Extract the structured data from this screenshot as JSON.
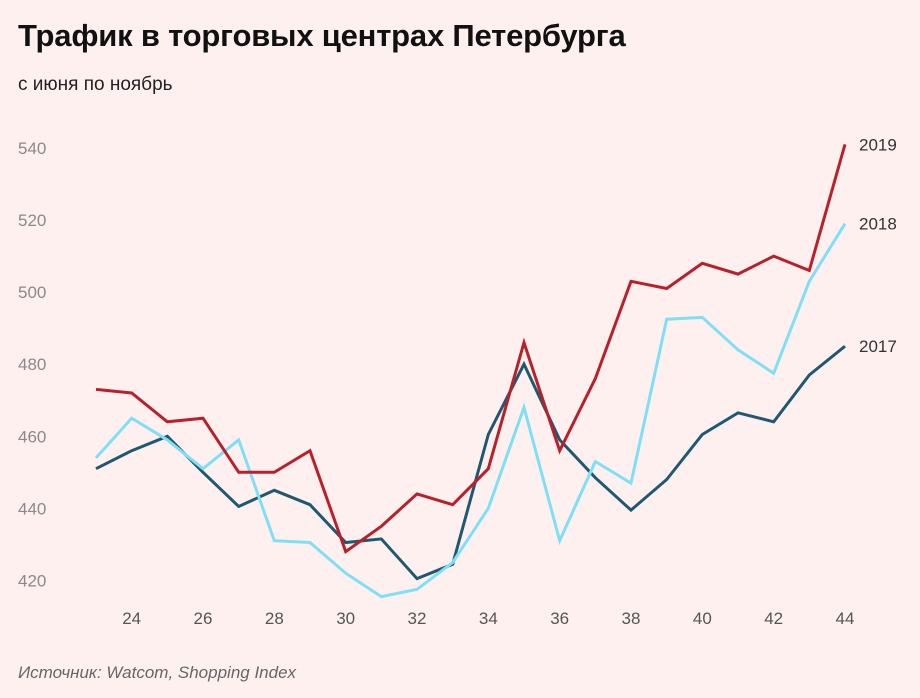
{
  "header": {
    "title": "Трафик в торговых центрах Петербурга",
    "subtitle": "с июня по ноябрь"
  },
  "footer": {
    "source_label": "Источник:",
    "source_text": " Watcom, Shopping Index"
  },
  "chart_data": {
    "type": "line",
    "title": "Трафик в торговых центрах Петербурга",
    "subtitle": "с июня по ноябрь",
    "xlabel": "",
    "ylabel": "",
    "x": [
      23,
      24,
      25,
      26,
      27,
      28,
      29,
      30,
      31,
      32,
      33,
      34,
      35,
      36,
      37,
      38,
      39,
      40,
      41,
      42,
      43,
      44
    ],
    "xticks": [
      24,
      26,
      28,
      30,
      32,
      34,
      36,
      38,
      40,
      42,
      44
    ],
    "yticks": [
      420,
      440,
      460,
      480,
      500,
      520,
      540
    ],
    "xlim": [
      23,
      44
    ],
    "ylim": [
      414,
      545
    ],
    "grid": false,
    "legend": "inline labels at line ends",
    "series": [
      {
        "name": "2017",
        "color": "#1f5872",
        "values": [
          451,
          456,
          460,
          450,
          440.5,
          445,
          441,
          430.5,
          431.5,
          420.5,
          424.5,
          460.5,
          480,
          459,
          448.5,
          439.5,
          448,
          460.5,
          466.5,
          464,
          477,
          485
        ]
      },
      {
        "name": "2018",
        "color": "#7fdff5",
        "values": [
          454,
          465,
          459,
          451,
          459,
          431,
          430.5,
          422,
          415.5,
          417.5,
          425,
          440,
          468,
          431,
          453,
          447,
          492.5,
          493,
          484,
          477.5,
          503,
          519
        ]
      },
      {
        "name": "2019",
        "color": "#b8202a",
        "values": [
          473,
          472,
          464,
          465,
          450,
          450,
          456,
          428,
          435,
          444,
          441,
          451,
          486,
          456,
          476,
          503,
          501,
          508,
          505,
          510,
          506,
          541
        ]
      }
    ]
  }
}
